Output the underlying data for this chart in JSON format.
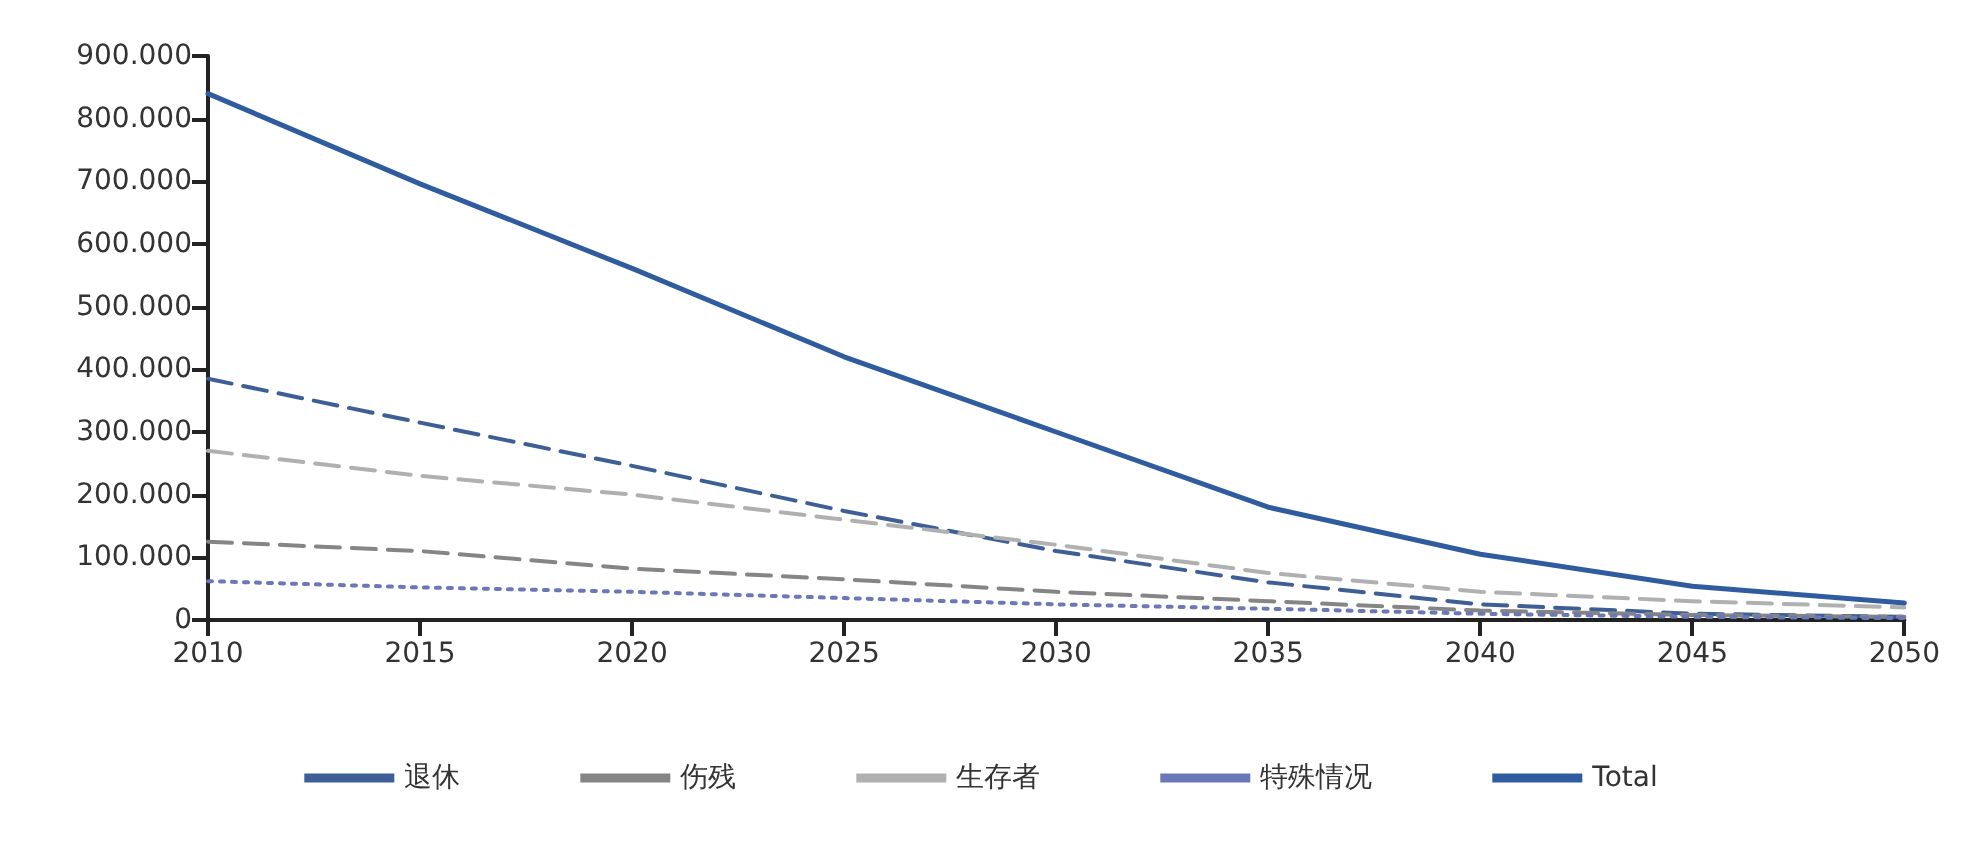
{
  "chart_data": {
    "type": "line",
    "x": [
      2010,
      2015,
      2020,
      2025,
      2030,
      2035,
      2040,
      2045,
      2050
    ],
    "series": [
      {
        "name": "退休",
        "color": "#3d5f95",
        "line_style": "dashed",
        "values": [
          385000,
          315000,
          246000,
          174000,
          110000,
          60000,
          25000,
          10000,
          5000
        ]
      },
      {
        "name": "伤残",
        "color": "#858585",
        "line_style": "dashed",
        "values": [
          125000,
          110000,
          82000,
          65000,
          45000,
          30000,
          15000,
          8000,
          5000
        ]
      },
      {
        "name": "生存者",
        "color": "#b0b0b0",
        "line_style": "dashed",
        "values": [
          270000,
          230000,
          200000,
          160000,
          120000,
          75000,
          45000,
          30000,
          20000
        ]
      },
      {
        "name": "特殊情况",
        "color": "#6a78b8",
        "line_style": "dotted",
        "values": [
          62000,
          52000,
          45000,
          35000,
          25000,
          18000,
          10000,
          5000,
          3000
        ]
      },
      {
        "name": "Total",
        "color": "#2f5c9e",
        "line_style": "solid",
        "values": [
          840000,
          696000,
          561000,
          420000,
          300000,
          180000,
          105000,
          54000,
          27000
        ]
      }
    ],
    "xlim": [
      2010,
      2050
    ],
    "xticks": [
      2010,
      2015,
      2020,
      2025,
      2030,
      2035,
      2040,
      2045,
      2050
    ],
    "ylim": [
      0,
      900000
    ],
    "yticks": [
      0,
      {
        "value": 100000,
        "label": "100.000"
      },
      {
        "value": 200000,
        "label": "200.000"
      },
      {
        "value": 300000,
        "label": "300.000"
      },
      {
        "value": 400000,
        "label": "400.000"
      },
      {
        "value": 500000,
        "label": "500.000"
      },
      {
        "value": 600000,
        "label": "600.000"
      },
      {
        "value": 700000,
        "label": "700.000"
      },
      {
        "value": 800000,
        "label": "800.000"
      },
      {
        "value": 900000,
        "label": "900.000"
      }
    ],
    "grid": false,
    "legend": "bottom",
    "marker": "none"
  }
}
